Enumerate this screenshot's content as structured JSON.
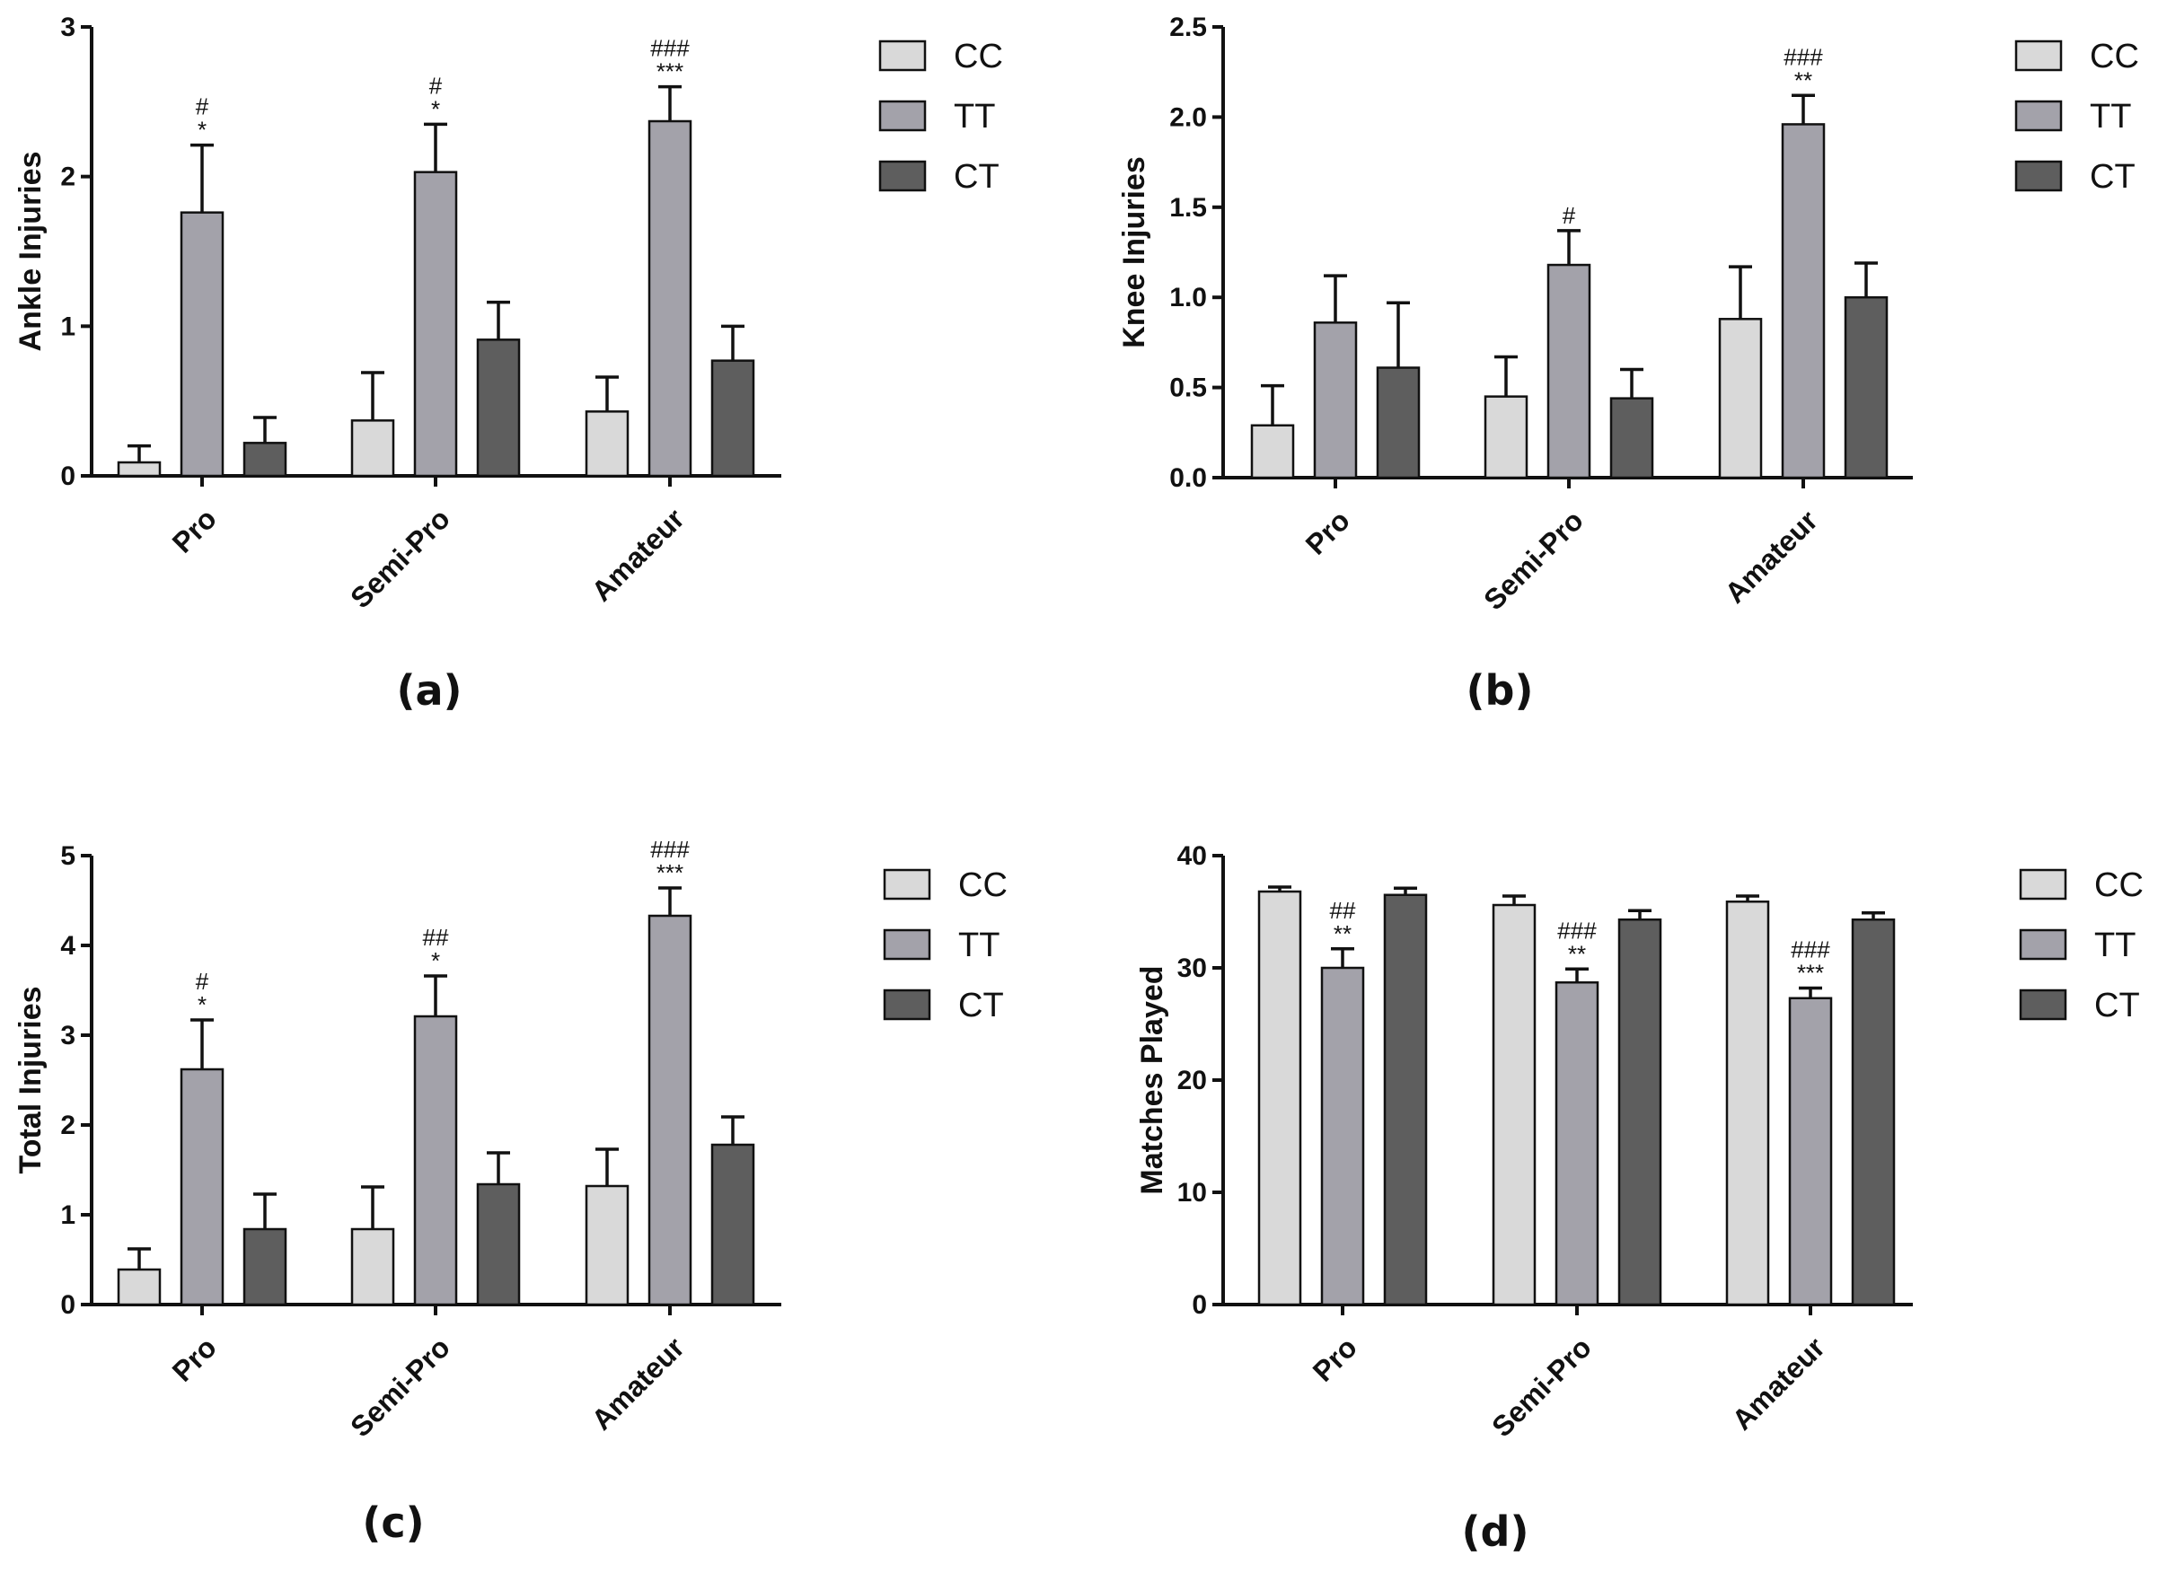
{
  "figure": {
    "legend": [
      {
        "name": "CC",
        "color": "#d9d9d9"
      },
      {
        "name": "TT",
        "color": "#a3a2aa"
      },
      {
        "name": "CT",
        "color": "#5e5e5e"
      }
    ]
  },
  "chart_data": [
    {
      "type": "bar",
      "panel_label": "(a)",
      "title": "",
      "xlabel": "",
      "ylabel": "Ankle Injuries",
      "ylim": [
        0,
        3
      ],
      "yticks": [
        "0",
        "1",
        "2",
        "3"
      ],
      "categories": [
        "Pro",
        "Semi-Pro",
        "Amateur"
      ],
      "series": [
        {
          "name": "CC",
          "values": [
            0.09,
            0.37,
            0.43
          ],
          "errors": [
            0.11,
            0.32,
            0.23
          ]
        },
        {
          "name": "TT",
          "values": [
            1.76,
            2.03,
            2.37
          ],
          "errors": [
            0.45,
            0.32,
            0.23
          ]
        },
        {
          "name": "CT",
          "values": [
            0.22,
            0.91,
            0.77
          ],
          "errors": [
            0.17,
            0.25,
            0.23
          ]
        }
      ],
      "annotations": [
        {
          "category": 0,
          "series": 1,
          "lines": [
            "#",
            "*"
          ]
        },
        {
          "category": 1,
          "series": 1,
          "lines": [
            "#",
            "*"
          ]
        },
        {
          "category": 2,
          "series": 1,
          "lines": [
            "###",
            "***"
          ]
        }
      ]
    },
    {
      "type": "bar",
      "panel_label": "(b)",
      "title": "",
      "xlabel": "",
      "ylabel": "Knee Injuries",
      "ylim": [
        0,
        2.5
      ],
      "yticks": [
        "0.0",
        "0.5",
        "1.0",
        "1.5",
        "2.0",
        "2.5"
      ],
      "categories": [
        "Pro",
        "Semi-Pro",
        "Amateur"
      ],
      "series": [
        {
          "name": "CC",
          "values": [
            0.29,
            0.45,
            0.88
          ],
          "errors": [
            0.22,
            0.22,
            0.29
          ]
        },
        {
          "name": "TT",
          "values": [
            0.86,
            1.18,
            1.96
          ],
          "errors": [
            0.26,
            0.19,
            0.16
          ]
        },
        {
          "name": "CT",
          "values": [
            0.61,
            0.44,
            1.0
          ],
          "errors": [
            0.36,
            0.16,
            0.19
          ]
        }
      ],
      "annotations": [
        {
          "category": 1,
          "series": 1,
          "lines": [
            "#"
          ]
        },
        {
          "category": 2,
          "series": 1,
          "lines": [
            "###",
            "**"
          ]
        }
      ]
    },
    {
      "type": "bar",
      "panel_label": "(c)",
      "title": "",
      "xlabel": "",
      "ylabel": "Total Injuries",
      "ylim": [
        0,
        5
      ],
      "yticks": [
        "0",
        "1",
        "2",
        "3",
        "4",
        "5"
      ],
      "categories": [
        "Pro",
        "Semi-Pro",
        "Amateur"
      ],
      "series": [
        {
          "name": "CC",
          "values": [
            0.39,
            0.84,
            1.32
          ],
          "errors": [
            0.23,
            0.47,
            0.41
          ]
        },
        {
          "name": "TT",
          "values": [
            2.62,
            3.21,
            4.33
          ],
          "errors": [
            0.55,
            0.45,
            0.31
          ]
        },
        {
          "name": "CT",
          "values": [
            0.84,
            1.34,
            1.78
          ],
          "errors": [
            0.39,
            0.35,
            0.31
          ]
        }
      ],
      "annotations": [
        {
          "category": 0,
          "series": 1,
          "lines": [
            "#",
            "*"
          ]
        },
        {
          "category": 1,
          "series": 1,
          "lines": [
            "##",
            "*"
          ]
        },
        {
          "category": 2,
          "series": 1,
          "lines": [
            "###",
            "***"
          ]
        }
      ]
    },
    {
      "type": "bar",
      "panel_label": "(d)",
      "title": "",
      "xlabel": "",
      "ylabel": "Matches Played",
      "ylim": [
        0,
        40
      ],
      "yticks": [
        "0",
        "10",
        "20",
        "30",
        "40"
      ],
      "categories": [
        "Pro",
        "Semi-Pro",
        "Amateur"
      ],
      "series": [
        {
          "name": "CC",
          "values": [
            36.8,
            35.6,
            35.9
          ],
          "errors": [
            0.4,
            0.8,
            0.5
          ]
        },
        {
          "name": "TT",
          "values": [
            30.0,
            28.7,
            27.3
          ],
          "errors": [
            1.7,
            1.2,
            0.9
          ]
        },
        {
          "name": "CT",
          "values": [
            36.5,
            34.3,
            34.3
          ],
          "errors": [
            0.6,
            0.8,
            0.6
          ]
        }
      ],
      "annotations": [
        {
          "category": 0,
          "series": 1,
          "lines": [
            "##",
            "**"
          ]
        },
        {
          "category": 1,
          "series": 1,
          "lines": [
            "###",
            "**"
          ]
        },
        {
          "category": 2,
          "series": 1,
          "lines": [
            "###",
            "***"
          ]
        }
      ]
    }
  ]
}
